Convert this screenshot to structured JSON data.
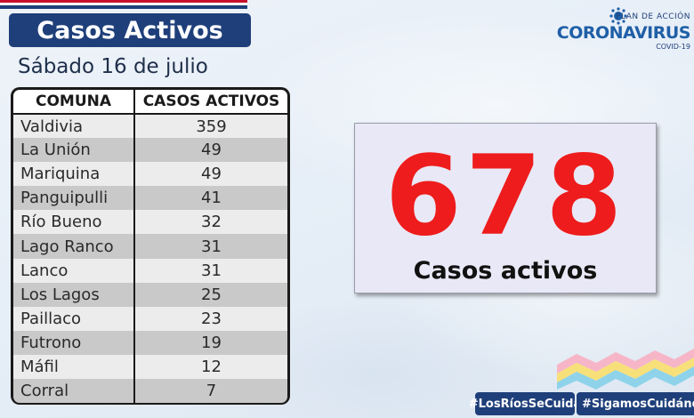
{
  "header": {
    "title": "Casos Activos",
    "date": "Sábado 16 de julio"
  },
  "logo": {
    "plan": "PLAN DE ACCIÓN",
    "name": "CORONAVIRUS",
    "sub": "COVID-19"
  },
  "table": {
    "headers": [
      "COMUNA",
      "CASOS ACTIVOS"
    ],
    "rows": [
      {
        "comuna": "Valdivia",
        "casos": "359"
      },
      {
        "comuna": "La Unión",
        "casos": "49"
      },
      {
        "comuna": "Mariquina",
        "casos": "49"
      },
      {
        "comuna": "Panguipulli",
        "casos": "41"
      },
      {
        "comuna": "Río Bueno",
        "casos": "32"
      },
      {
        "comuna": "Lago Ranco",
        "casos": "31"
      },
      {
        "comuna": "Lanco",
        "casos": "31"
      },
      {
        "comuna": "Los Lagos",
        "casos": "25"
      },
      {
        "comuna": "Paillaco",
        "casos": "23"
      },
      {
        "comuna": "Futrono",
        "casos": "19"
      },
      {
        "comuna": "Máfil",
        "casos": "12"
      },
      {
        "comuna": "Corral",
        "casos": "7"
      }
    ]
  },
  "total": {
    "number": "678",
    "label": "Casos activos"
  },
  "hashtags": [
    "#LosRíosSeCuida",
    "#SigamosCuidándonos"
  ],
  "colors": {
    "banner": "#1f3f7a",
    "total_number": "#ee1c1c",
    "flag_red": "#c8102e",
    "logo_blue": "#1f5fa6"
  },
  "icons": [
    "chile-flag-stripes",
    "coronavirus-logo-icon",
    "rainbow-waves-icon"
  ]
}
